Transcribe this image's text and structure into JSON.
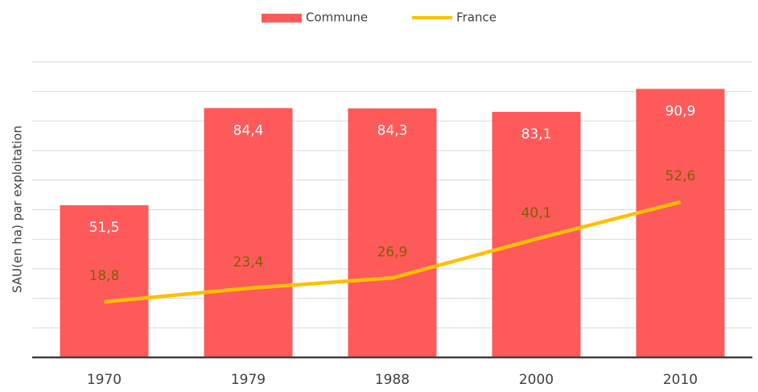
{
  "chart_data": {
    "type": "bar-line",
    "y_label": "SAU(en ha) par exploitation",
    "categories": [
      "1970",
      "1979",
      "1988",
      "2000",
      "2010"
    ],
    "series": [
      {
        "name": "Commune",
        "type": "bar",
        "color": "#ff5a5a",
        "label_color": "#ffffff",
        "values": [
          51.5,
          84.4,
          84.3,
          83.1,
          90.9
        ],
        "value_labels": [
          "51,5",
          "84,4",
          "84,3",
          "83,1",
          "90,9"
        ]
      },
      {
        "name": "France",
        "type": "line",
        "color": "#ffc000",
        "label_color": "#806000",
        "values": [
          18.8,
          23.4,
          26.9,
          40.1,
          52.6
        ],
        "value_labels": [
          "18,8",
          "23,4",
          "26,9",
          "40,1",
          "52,6"
        ]
      }
    ],
    "ylim": [
      0,
      100
    ],
    "yticks": [
      0,
      10,
      20,
      30,
      40,
      50,
      60,
      70,
      80,
      90,
      100
    ],
    "grid": true,
    "legend": "top"
  }
}
